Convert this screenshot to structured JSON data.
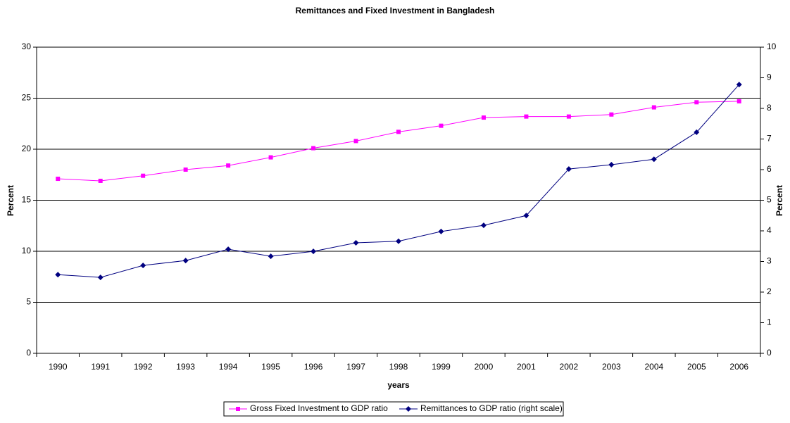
{
  "chart_data": {
    "type": "line",
    "title": "Remittances and Fixed Investment in Bangladesh",
    "x_label": "years",
    "y_label": "Percent",
    "y2_label": "Percent",
    "categories": [
      "1990",
      "1991",
      "1992",
      "1993",
      "1994",
      "1995",
      "1996",
      "1997",
      "1998",
      "1999",
      "2000",
      "2001",
      "2002",
      "2003",
      "2004",
      "2005",
      "2006"
    ],
    "series": [
      {
        "name": "Gross Fixed Investment to GDP ratio",
        "color": "#ff00ff",
        "marker": "square",
        "values": [
          17.1,
          16.9,
          17.4,
          18.0,
          18.4,
          19.2,
          20.1,
          20.8,
          21.7,
          22.3,
          23.1,
          23.2,
          23.2,
          23.4,
          24.1,
          24.6,
          24.7
        ]
      },
      {
        "name": "Remittances to GDP ratio (right scale)",
        "color": "#000080",
        "marker": "diamond",
        "axis": "y2",
        "values": [
          2.57,
          2.48,
          2.87,
          3.03,
          3.4,
          3.17,
          3.33,
          3.61,
          3.66,
          3.98,
          4.18,
          4.5,
          6.02,
          6.16,
          6.34,
          7.22,
          8.78
        ]
      }
    ],
    "ylim": [
      0,
      30
    ],
    "yticks": [
      0,
      5,
      10,
      15,
      20,
      25,
      30
    ],
    "y2lim": [
      0,
      10
    ],
    "y2ticks": [
      0,
      1,
      2,
      3,
      4,
      5,
      6,
      7,
      8,
      9,
      10
    ],
    "grid": true,
    "legend": "bottom"
  }
}
